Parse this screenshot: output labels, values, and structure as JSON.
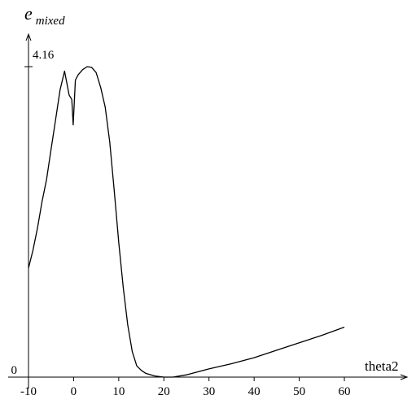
{
  "chart_data": {
    "type": "line",
    "ylabel_main": "e",
    "ylabel_sub": "mixed",
    "xlabel": "theta2",
    "x_ticks": [
      -10,
      0,
      10,
      20,
      30,
      40,
      50,
      60
    ],
    "x_tick_labels": [
      "-10",
      "0",
      "10",
      "20",
      "30",
      "40",
      "50",
      "60"
    ],
    "y_ticks": [
      0,
      4.16
    ],
    "y_tick_labels": [
      "0",
      "4.16"
    ],
    "xlim": [
      -10,
      60
    ],
    "ylim": [
      0,
      4.16
    ],
    "grid": false,
    "series": [
      {
        "points": [
          [
            -10,
            1.46
          ],
          [
            -9,
            1.7
          ],
          [
            -8,
            2.0
          ],
          [
            -7,
            2.35
          ],
          [
            -6,
            2.65
          ],
          [
            -5,
            3.05
          ],
          [
            -4,
            3.45
          ],
          [
            -3,
            3.85
          ],
          [
            -2,
            4.1
          ],
          [
            -1,
            3.78
          ],
          [
            -0.4,
            3.72
          ],
          [
            -0.1,
            3.38
          ],
          [
            0.4,
            3.98
          ],
          [
            1,
            4.05
          ],
          [
            2,
            4.12
          ],
          [
            3,
            4.16
          ],
          [
            4,
            4.15
          ],
          [
            5,
            4.08
          ],
          [
            6,
            3.88
          ],
          [
            7,
            3.62
          ],
          [
            8,
            3.15
          ],
          [
            9,
            2.5
          ],
          [
            10,
            1.8
          ],
          [
            11,
            1.2
          ],
          [
            12,
            0.7
          ],
          [
            13,
            0.34
          ],
          [
            14,
            0.15
          ],
          [
            15,
            0.09
          ],
          [
            16,
            0.05
          ],
          [
            18,
            0.015
          ],
          [
            20,
            0.0
          ],
          [
            22,
            0.0
          ],
          [
            25,
            0.03
          ],
          [
            30,
            0.11
          ],
          [
            35,
            0.18
          ],
          [
            40,
            0.26
          ],
          [
            45,
            0.36
          ],
          [
            50,
            0.46
          ],
          [
            55,
            0.56
          ],
          [
            60,
            0.67
          ]
        ]
      }
    ]
  }
}
